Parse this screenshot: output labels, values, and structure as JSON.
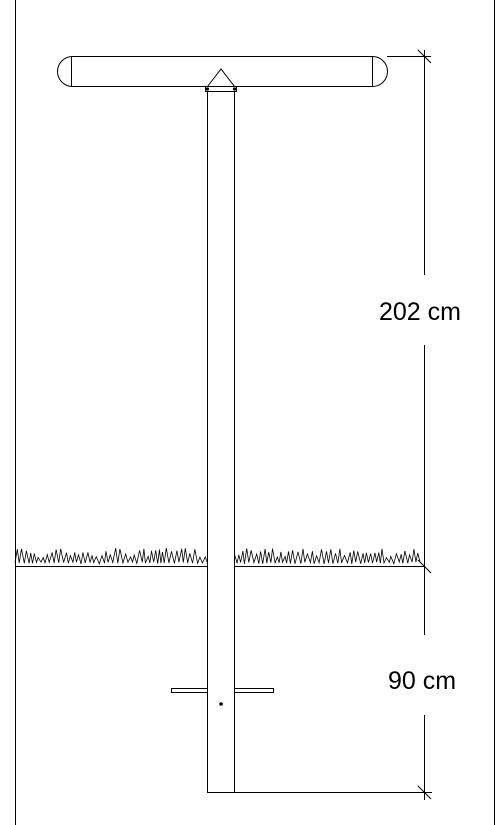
{
  "diagram": {
    "dimensions": {
      "above_ground": "202 cm",
      "below_ground": "90 cm"
    }
  }
}
